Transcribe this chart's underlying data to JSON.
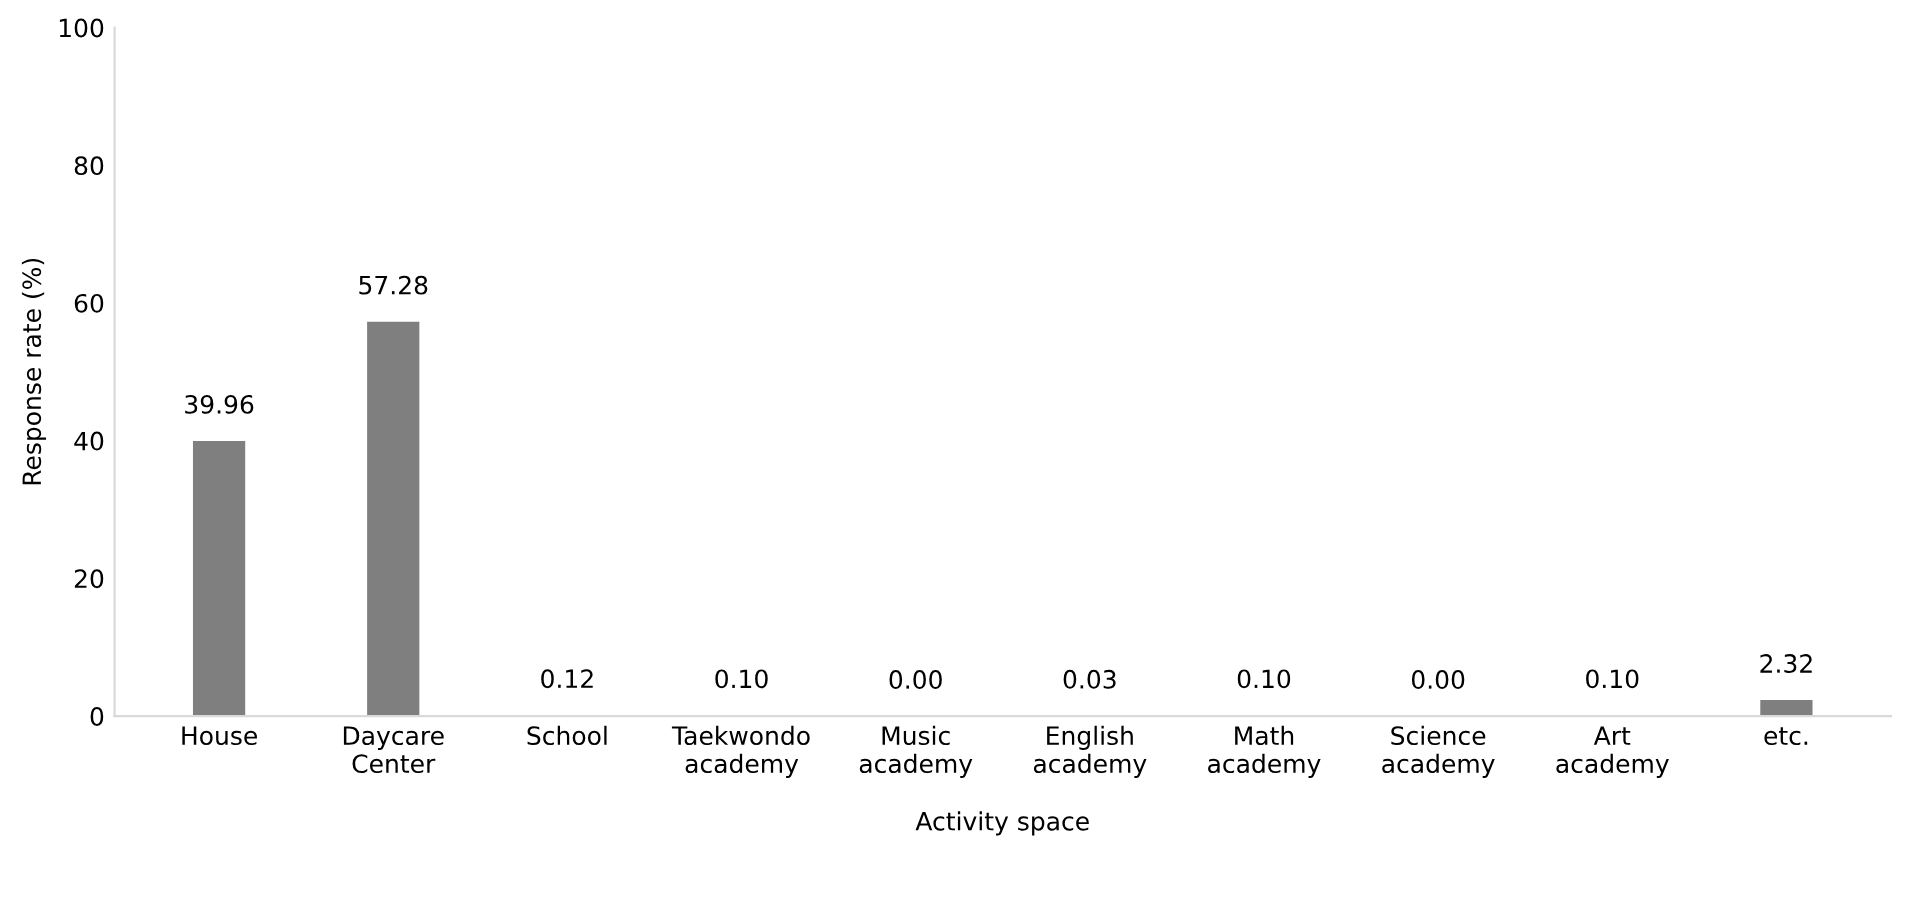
{
  "chart_data": {
    "type": "bar",
    "categories": [
      "House",
      "Daycare\nCenter",
      "School",
      "Taekwondo\nacademy",
      "Music\nacademy",
      "English\nacademy",
      "Math\nacademy",
      "Science\nacademy",
      "Art\nacademy",
      "etc."
    ],
    "values": [
      39.96,
      57.28,
      0.12,
      0.1,
      0.0,
      0.03,
      0.1,
      0.0,
      0.1,
      2.32
    ],
    "value_labels": [
      "39.96",
      "57.28",
      "0.12",
      "0.10",
      "0.00",
      "0.03",
      "0.10",
      "0.00",
      "0.10",
      "2.32"
    ],
    "color": "#7f7f7f",
    "xlabel": "Activity space",
    "ylabel": "Response rate (%)",
    "ylim": [
      0,
      100
    ],
    "yticks": [
      0,
      20,
      40,
      60,
      80,
      100
    ],
    "grid": false
  }
}
